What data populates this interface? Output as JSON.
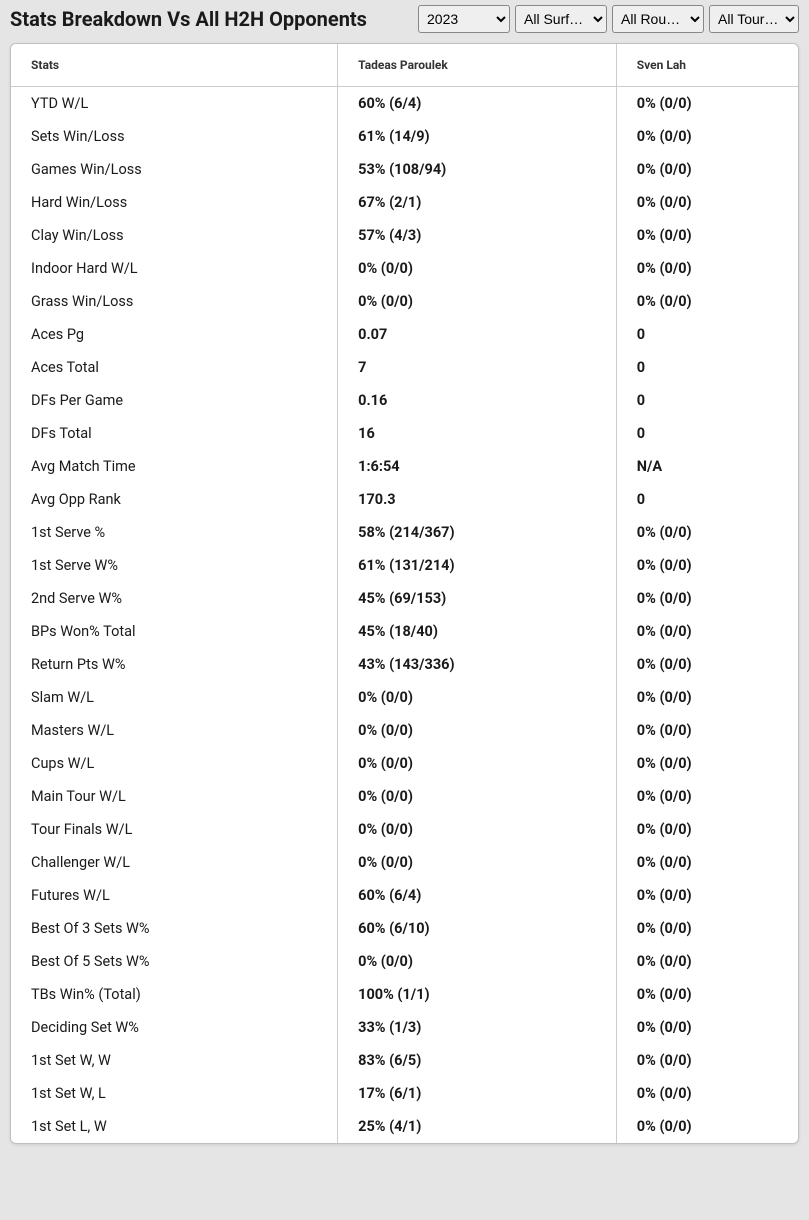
{
  "header": {
    "title": "Stats Breakdown Vs All H2H Opponents",
    "filters": {
      "year": {
        "selected": "2023",
        "options": [
          "2023"
        ]
      },
      "surface": {
        "selected": "All Surf…",
        "options": [
          "All Surf…"
        ]
      },
      "round": {
        "selected": "All Rou…",
        "options": [
          "All Rou…"
        ]
      },
      "tour": {
        "selected": "All Tour…",
        "options": [
          "All Tour…"
        ]
      }
    }
  },
  "table": {
    "columns": [
      "Stats",
      "Tadeas Paroulek",
      "Sven Lah"
    ],
    "rows": [
      [
        "YTD W/L",
        "60% (6/4)",
        "0% (0/0)"
      ],
      [
        "Sets Win/Loss",
        "61% (14/9)",
        "0% (0/0)"
      ],
      [
        "Games Win/Loss",
        "53% (108/94)",
        "0% (0/0)"
      ],
      [
        "Hard Win/Loss",
        "67% (2/1)",
        "0% (0/0)"
      ],
      [
        "Clay Win/Loss",
        "57% (4/3)",
        "0% (0/0)"
      ],
      [
        "Indoor Hard W/L",
        "0% (0/0)",
        "0% (0/0)"
      ],
      [
        "Grass Win/Loss",
        "0% (0/0)",
        "0% (0/0)"
      ],
      [
        "Aces Pg",
        "0.07",
        "0"
      ],
      [
        "Aces Total",
        "7",
        "0"
      ],
      [
        "DFs Per Game",
        "0.16",
        "0"
      ],
      [
        "DFs Total",
        "16",
        "0"
      ],
      [
        "Avg Match Time",
        "1:6:54",
        "N/A"
      ],
      [
        "Avg Opp Rank",
        "170.3",
        "0"
      ],
      [
        "1st Serve %",
        "58% (214/367)",
        "0% (0/0)"
      ],
      [
        "1st Serve W%",
        "61% (131/214)",
        "0% (0/0)"
      ],
      [
        "2nd Serve W%",
        "45% (69/153)",
        "0% (0/0)"
      ],
      [
        "BPs Won% Total",
        "45% (18/40)",
        "0% (0/0)"
      ],
      [
        "Return Pts W%",
        "43% (143/336)",
        "0% (0/0)"
      ],
      [
        "Slam W/L",
        "0% (0/0)",
        "0% (0/0)"
      ],
      [
        "Masters W/L",
        "0% (0/0)",
        "0% (0/0)"
      ],
      [
        "Cups W/L",
        "0% (0/0)",
        "0% (0/0)"
      ],
      [
        "Main Tour W/L",
        "0% (0/0)",
        "0% (0/0)"
      ],
      [
        "Tour Finals W/L",
        "0% (0/0)",
        "0% (0/0)"
      ],
      [
        "Challenger W/L",
        "0% (0/0)",
        "0% (0/0)"
      ],
      [
        "Futures W/L",
        "60% (6/4)",
        "0% (0/0)"
      ],
      [
        "Best Of 3 Sets W%",
        "60% (6/10)",
        "0% (0/0)"
      ],
      [
        "Best Of 5 Sets W%",
        "0% (0/0)",
        "0% (0/0)"
      ],
      [
        "TBs Win% (Total)",
        "100% (1/1)",
        "0% (0/0)"
      ],
      [
        "Deciding Set W%",
        "33% (1/3)",
        "0% (0/0)"
      ],
      [
        "1st Set W, W",
        "83% (6/5)",
        "0% (0/0)"
      ],
      [
        "1st Set W, L",
        "17% (6/1)",
        "0% (0/0)"
      ],
      [
        "1st Set L, W",
        "25% (4/1)",
        "0% (0/0)"
      ]
    ]
  }
}
